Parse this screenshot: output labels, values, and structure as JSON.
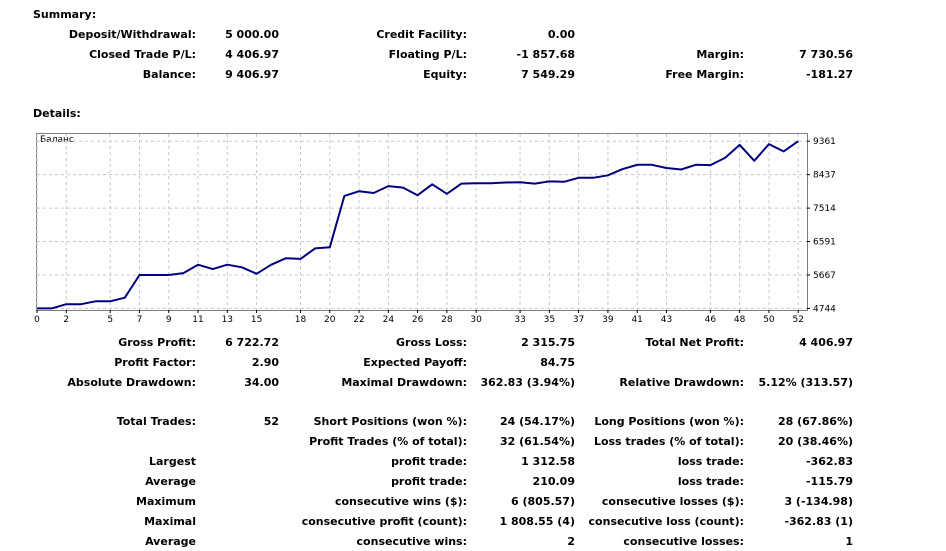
{
  "summary": {
    "title": "Summary:",
    "rows": [
      [
        {
          "label": "Deposit/Withdrawal:",
          "value": "5 000.00"
        },
        {
          "label": "Credit Facility:",
          "value": "0.00"
        },
        {
          "label": "",
          "value": ""
        }
      ],
      [
        {
          "label": "Closed Trade P/L:",
          "value": "4 406.97"
        },
        {
          "label": "Floating P/L:",
          "value": "-1 857.68"
        },
        {
          "label": "Margin:",
          "value": "7 730.56"
        }
      ],
      [
        {
          "label": "Balance:",
          "value": "9 406.97"
        },
        {
          "label": "Equity:",
          "value": "7 549.29"
        },
        {
          "label": "Free Margin:",
          "value": "-181.27"
        }
      ]
    ]
  },
  "details": {
    "title": "Details:",
    "rows": [
      [
        {
          "label": "Gross Profit:",
          "value": "6 722.72"
        },
        {
          "label": "Gross Loss:",
          "value": "2 315.75"
        },
        {
          "label": "Total Net Profit:",
          "value": "4 406.97"
        }
      ],
      [
        {
          "label": "Profit Factor:",
          "value": "2.90"
        },
        {
          "label": "Expected Payoff:",
          "value": "84.75"
        },
        {
          "label": "",
          "value": ""
        }
      ],
      [
        {
          "label": "Absolute Drawdown:",
          "value": "34.00"
        },
        {
          "label": "Maximal Drawdown:",
          "value": "362.83 (3.94%)"
        },
        {
          "label": "Relative Drawdown:",
          "value": "5.12% (313.57)"
        }
      ]
    ],
    "trades": [
      [
        {
          "label": "Total Trades:",
          "value": "52"
        },
        {
          "label": "Short Positions (won %):",
          "value": "24 (54.17%)"
        },
        {
          "label": "Long Positions (won %):",
          "value": "28 (67.86%)"
        }
      ],
      [
        {
          "label": "",
          "value": ""
        },
        {
          "label": "Profit Trades (% of total):",
          "value": "32 (61.54%)"
        },
        {
          "label": "Loss trades (% of total):",
          "value": "20 (38.46%)"
        }
      ],
      [
        {
          "label": "Largest",
          "value": ""
        },
        {
          "label": "profit trade:",
          "value": "1 312.58"
        },
        {
          "label": "loss trade:",
          "value": "-362.83"
        }
      ],
      [
        {
          "label": "Average",
          "value": ""
        },
        {
          "label": "profit trade:",
          "value": "210.09"
        },
        {
          "label": "loss trade:",
          "value": "-115.79"
        }
      ],
      [
        {
          "label": "Maximum",
          "value": ""
        },
        {
          "label": "consecutive wins ($):",
          "value": "6 (805.57)"
        },
        {
          "label": "consecutive losses ($):",
          "value": "3 (-134.98)"
        }
      ],
      [
        {
          "label": "Maximal",
          "value": ""
        },
        {
          "label": "consecutive profit (count):",
          "value": "1 808.55 (4)"
        },
        {
          "label": "consecutive loss (count):",
          "value": "-362.83 (1)"
        }
      ],
      [
        {
          "label": "Average",
          "value": ""
        },
        {
          "label": "consecutive wins:",
          "value": "2"
        },
        {
          "label": "consecutive losses:",
          "value": "1"
        }
      ]
    ]
  },
  "chart_data": {
    "type": "line",
    "title": "Баланс",
    "xlabel": "",
    "ylabel": "",
    "x_ticks": [
      0,
      2,
      5,
      7,
      9,
      11,
      13,
      15,
      18,
      20,
      22,
      24,
      26,
      28,
      30,
      33,
      35,
      37,
      39,
      41,
      43,
      46,
      48,
      50,
      52
    ],
    "y_ticks": [
      4744,
      5667,
      6591,
      7514,
      8437,
      9361
    ],
    "xlim": [
      0,
      52.6
    ],
    "ylim": [
      4700,
      9560
    ],
    "grid": true,
    "line_color": "#000080",
    "series": [
      {
        "name": "",
        "x": [
          0,
          1,
          2,
          3,
          4,
          5,
          6,
          7,
          8,
          9,
          10,
          11,
          12,
          13,
          14,
          15,
          16,
          17,
          18,
          19,
          20,
          21,
          22,
          23,
          24,
          25,
          26,
          27,
          28,
          29,
          30,
          31,
          32,
          33,
          34,
          35,
          36,
          37,
          38,
          39,
          40,
          41,
          42,
          43,
          44,
          45,
          46,
          47,
          48,
          49,
          50,
          51,
          52
        ],
        "y": [
          4744,
          4744,
          4860,
          4860,
          4940,
          4940,
          5040,
          5667,
          5667,
          5667,
          5720,
          5950,
          5830,
          5950,
          5880,
          5700,
          5950,
          6130,
          6110,
          6400,
          6430,
          7850,
          7980,
          7930,
          8120,
          8080,
          7870,
          8170,
          7910,
          8190,
          8200,
          8200,
          8220,
          8230,
          8190,
          8250,
          8240,
          8350,
          8350,
          8420,
          8590,
          8710,
          8710,
          8620,
          8580,
          8710,
          8700,
          8900,
          9260,
          8820,
          9280,
          9080,
          9361
        ]
      }
    ]
  }
}
